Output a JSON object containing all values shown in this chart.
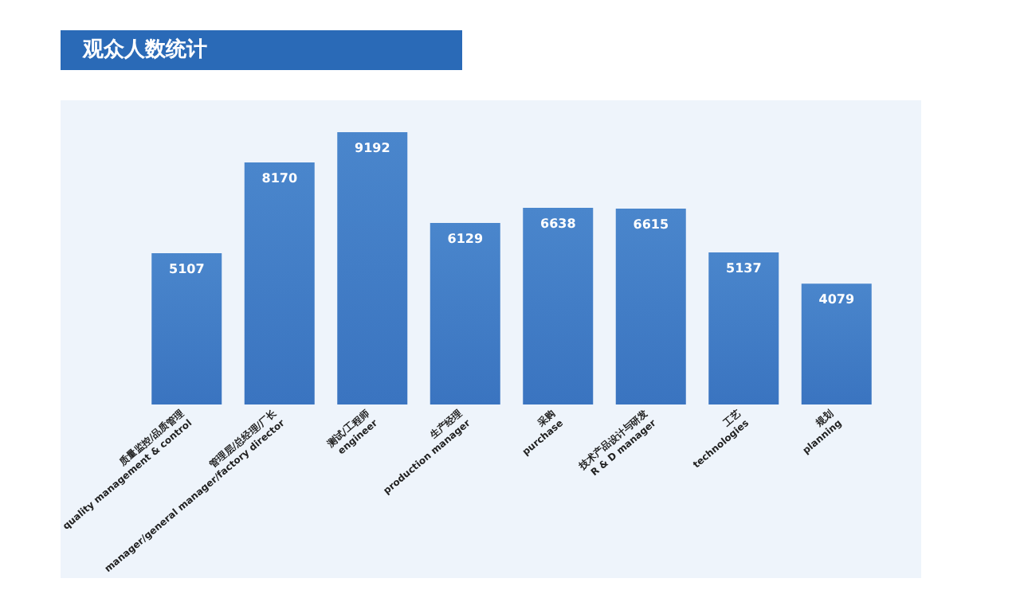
{
  "chart_data": {
    "type": "bar",
    "title": "观众人数统计",
    "categories": [
      "质量监控/品质管理\nquality management & control",
      "管理层/总经理/厂长\nmanager/general manager/factory director",
      "测试/工程师\nengineer",
      "生产经理\nproduction manager",
      "采购\npurchase",
      "技术产品设计与研发\nR & D manager",
      "工艺\ntechnologies",
      "规划\nplanning"
    ],
    "values": [
      5107,
      8170,
      9192,
      6129,
      6638,
      6615,
      5137,
      4079
    ],
    "color": "#4a86cc",
    "data_labels": true
  }
}
